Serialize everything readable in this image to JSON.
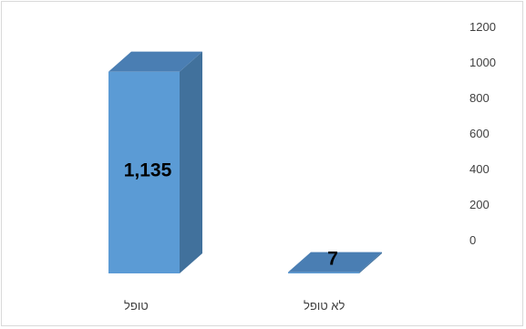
{
  "chart_data": {
    "type": "bar",
    "categories": [
      "טופל",
      "לא טופל"
    ],
    "values": [
      1135,
      7
    ],
    "data_labels": [
      "1,135",
      "7"
    ],
    "y_ticks": [
      "0",
      "200",
      "400",
      "600",
      "800",
      "1000",
      "1200"
    ],
    "ylim": [
      0,
      1200
    ],
    "axis_position": "right",
    "grid": false,
    "style": "3d-column",
    "colors": {
      "front": "#5b9bd5",
      "side": "#41719c",
      "top": "#4a7eb3"
    }
  }
}
